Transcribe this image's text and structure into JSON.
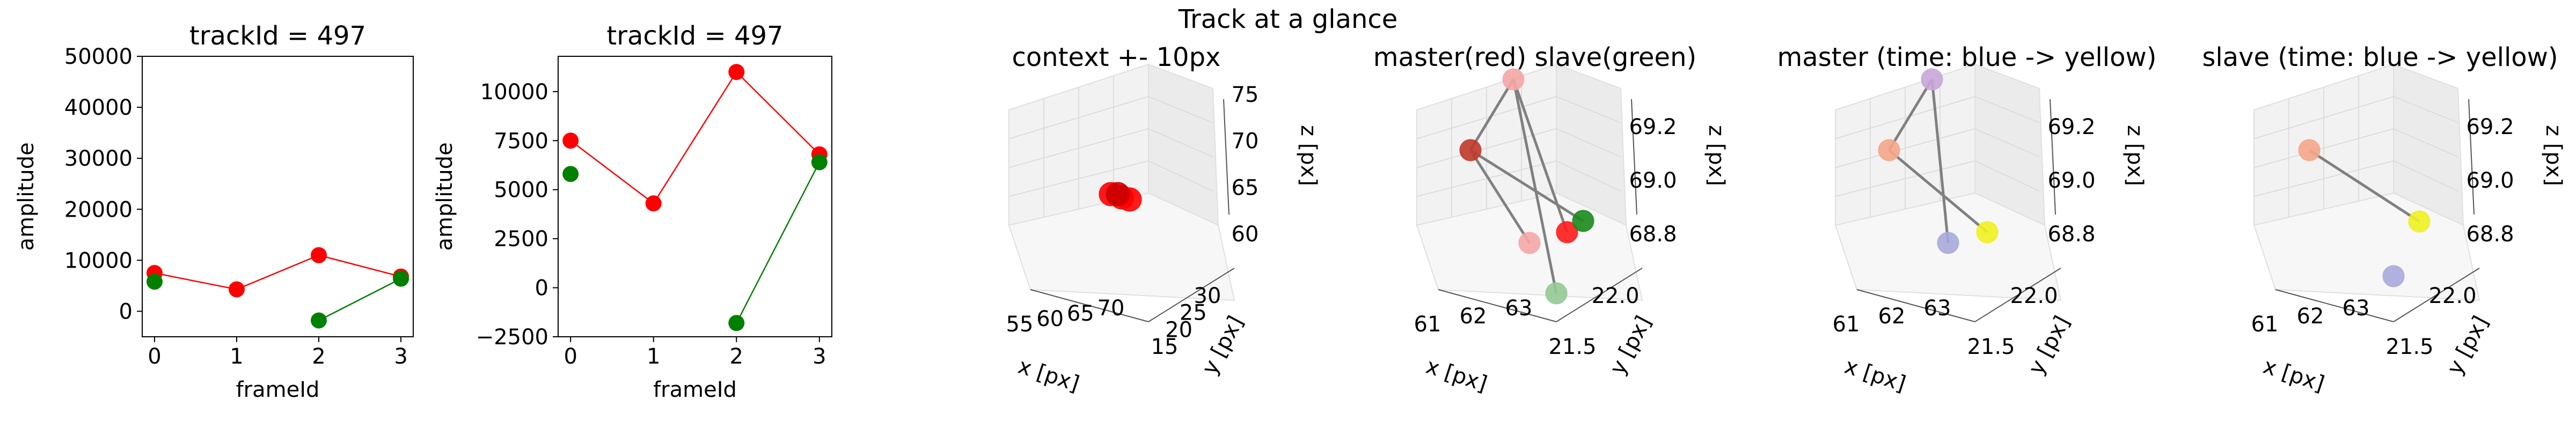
{
  "suptitle": "Track at a glance",
  "chart_data": [
    {
      "type": "line",
      "title": "trackId = 497",
      "xlabel": "frameId",
      "ylabel": "amplitude",
      "xlim": [
        -0.15,
        3.15
      ],
      "ylim": [
        -5000,
        50000
      ],
      "xticks": [
        "0",
        "1",
        "2",
        "3"
      ],
      "yticks": [
        "0",
        "10000",
        "20000",
        "30000",
        "40000",
        "50000"
      ],
      "series": [
        {
          "color": "#ff0000",
          "x": [
            0,
            1,
            2,
            3
          ],
          "y": [
            7500,
            4300,
            11000,
            6800
          ]
        },
        {
          "color": "#008000",
          "x": [
            0,
            2,
            3
          ],
          "y": [
            5800,
            -1800,
            6400
          ],
          "line_from_index": 1
        }
      ]
    },
    {
      "type": "line",
      "title": "trackId = 497",
      "xlabel": "frameId",
      "ylabel": "amplitude",
      "xlim": [
        -0.15,
        3.15
      ],
      "ylim": [
        -2500,
        11800
      ],
      "xticks": [
        "0",
        "1",
        "2",
        "3"
      ],
      "yticks": [
        "−2500",
        "0",
        "2500",
        "5000",
        "7500",
        "10000"
      ],
      "series": [
        {
          "color": "#ff0000",
          "x": [
            0,
            1,
            2,
            3
          ],
          "y": [
            7500,
            4300,
            11000,
            6800
          ]
        },
        {
          "color": "#008000",
          "x": [
            0,
            2,
            3
          ],
          "y": [
            5800,
            -1800,
            6400
          ],
          "line_from_index": 1
        }
      ]
    },
    {
      "type": "scatter3d",
      "title": "context +- 10px",
      "xlabel": "x [px]",
      "ylabel": "y [px]",
      "zlabel": "z [px]",
      "xticks": [
        "55",
        "60",
        "65",
        "70"
      ],
      "yticks": [
        "15",
        "20",
        "25",
        "30"
      ],
      "zticks": [
        "60",
        "65",
        "70",
        "75"
      ],
      "points": [
        {
          "color": "#ff0000"
        },
        {
          "color": "#ff0000"
        },
        {
          "color": "#ff0000"
        },
        {
          "color": "#cc0000"
        }
      ]
    },
    {
      "type": "scatter3d",
      "title": "master(red) slave(green)",
      "xlabel": "x [px]",
      "ylabel": "y [px]",
      "zlabel": "z [px]",
      "xticks": [
        "61",
        "62",
        "63"
      ],
      "yticks": [
        "21.5",
        "22.0"
      ],
      "zticks": [
        "68.8",
        "69.0",
        "69.2"
      ],
      "points": [
        {
          "color": "#f4a6a6"
        },
        {
          "color": "#c0392b"
        },
        {
          "color": "#f4a6a6"
        },
        {
          "color": "#ff1a1a"
        },
        {
          "color": "#1a8a1a"
        },
        {
          "color": "#93c993"
        }
      ]
    },
    {
      "type": "scatter3d",
      "title": "master (time: blue -> yellow)",
      "xlabel": "x [px]",
      "ylabel": "y [px]",
      "zlabel": "z [px]",
      "xticks": [
        "61",
        "62",
        "63"
      ],
      "yticks": [
        "21.5",
        "22.0"
      ],
      "zticks": [
        "68.8",
        "69.0",
        "69.2"
      ],
      "points": [
        {
          "color": "#c9a5d8"
        },
        {
          "color": "#f5a58a"
        },
        {
          "color": "#a9a9dc"
        },
        {
          "color": "#f0f020"
        }
      ]
    },
    {
      "type": "scatter3d",
      "title": "slave (time: blue -> yellow)",
      "xlabel": "x [px]",
      "ylabel": "y [px]",
      "zlabel": "z [px]",
      "xticks": [
        "61",
        "62",
        "63"
      ],
      "yticks": [
        "21.5",
        "22.0"
      ],
      "zticks": [
        "68.8",
        "69.0",
        "69.2"
      ],
      "points": [
        {
          "color": "#f5a58a"
        },
        {
          "color": "#f0f020"
        },
        {
          "color": "#a9a9dc"
        }
      ]
    }
  ]
}
